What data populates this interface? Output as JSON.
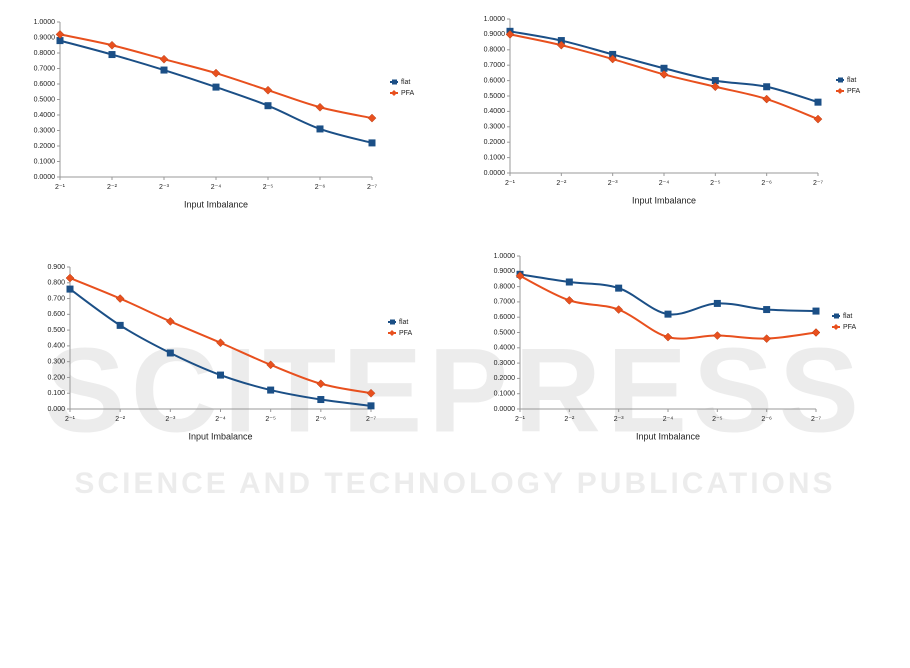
{
  "watermark": {
    "brand": "SCITEPRESS",
    "tagline": "SCIENCE AND TECHNOLOGY PUBLICATIONS"
  },
  "chart_data": [
    {
      "type": "line",
      "xlabel": "Input Imbalance",
      "categories": [
        "2⁻¹",
        "2⁻²",
        "2⁻³",
        "2⁻⁴",
        "2⁻⁵",
        "2⁻⁶",
        "2⁻⁷"
      ],
      "ylim": [
        0,
        1
      ],
      "yticks": [
        {
          "value": 0,
          "label": "0.0000"
        },
        {
          "value": 0.1,
          "label": "0.1000"
        },
        {
          "value": 0.2,
          "label": "0.2000"
        },
        {
          "value": 0.3,
          "label": "0.3000"
        },
        {
          "value": 0.4,
          "label": "0.4000"
        },
        {
          "value": 0.5,
          "label": "0.5000"
        },
        {
          "value": 0.6,
          "label": "0.6000"
        },
        {
          "value": 0.7,
          "label": "0.7000"
        },
        {
          "value": 0.8,
          "label": "0.8000"
        },
        {
          "value": 0.9,
          "label": "0.9000"
        },
        {
          "value": 1,
          "label": "1.0000"
        }
      ],
      "series": [
        {
          "name": "flat",
          "color": "#1b4f86",
          "values": [
            0.88,
            0.79,
            0.69,
            0.58,
            0.46,
            0.31,
            0.22
          ]
        },
        {
          "name": "PFA",
          "color": "#e8501e",
          "values": [
            0.92,
            0.85,
            0.76,
            0.67,
            0.56,
            0.45,
            0.38
          ]
        }
      ]
    },
    {
      "type": "line",
      "xlabel": "Input Imbalance",
      "categories": [
        "2⁻¹",
        "2⁻²",
        "2⁻³",
        "2⁻⁴",
        "2⁻⁵",
        "2⁻⁶",
        "2⁻⁷"
      ],
      "ylim": [
        0,
        1
      ],
      "yticks": [
        {
          "value": 0,
          "label": "0.0000"
        },
        {
          "value": 0.1,
          "label": "0.1000"
        },
        {
          "value": 0.2,
          "label": "0.2000"
        },
        {
          "value": 0.3,
          "label": "0.3000"
        },
        {
          "value": 0.4,
          "label": "0.4000"
        },
        {
          "value": 0.5,
          "label": "0.5000"
        },
        {
          "value": 0.6,
          "label": "0.6000"
        },
        {
          "value": 0.7,
          "label": "0.7000"
        },
        {
          "value": 0.8,
          "label": "0.8000"
        },
        {
          "value": 0.9,
          "label": "0.9000"
        },
        {
          "value": 1,
          "label": "1.0000"
        }
      ],
      "series": [
        {
          "name": "flat",
          "color": "#1b4f86",
          "values": [
            0.92,
            0.86,
            0.77,
            0.68,
            0.6,
            0.56,
            0.46
          ]
        },
        {
          "name": "PFA",
          "color": "#e8501e",
          "values": [
            0.9,
            0.83,
            0.74,
            0.64,
            0.56,
            0.48,
            0.35
          ]
        }
      ]
    },
    {
      "type": "line",
      "xlabel": "Input Imbalance",
      "categories": [
        "2⁻¹",
        "2⁻²",
        "2⁻³",
        "2⁻⁴",
        "2⁻⁵",
        "2⁻⁶",
        "2⁻⁷"
      ],
      "ylim": [
        0,
        0.9
      ],
      "yticks": [
        {
          "value": 0,
          "label": "0.000"
        },
        {
          "value": 0.1,
          "label": "0.100"
        },
        {
          "value": 0.2,
          "label": "0.200"
        },
        {
          "value": 0.3,
          "label": "0.300"
        },
        {
          "value": 0.4,
          "label": "0.400"
        },
        {
          "value": 0.5,
          "label": "0.500"
        },
        {
          "value": 0.6,
          "label": "0.600"
        },
        {
          "value": 0.7,
          "label": "0.700"
        },
        {
          "value": 0.8,
          "label": "0.800"
        },
        {
          "value": 0.9,
          "label": "0.900"
        }
      ],
      "series": [
        {
          "name": "flat",
          "color": "#1b4f86",
          "values": [
            0.76,
            0.53,
            0.355,
            0.215,
            0.12,
            0.06,
            0.02
          ]
        },
        {
          "name": "PFA",
          "color": "#e8501e",
          "values": [
            0.83,
            0.7,
            0.555,
            0.42,
            0.28,
            0.16,
            0.1
          ]
        }
      ]
    },
    {
      "type": "line",
      "xlabel": "Input Imbalance",
      "categories": [
        "2⁻¹",
        "2⁻²",
        "2⁻³",
        "2⁻⁴",
        "2⁻⁵",
        "2⁻⁶",
        "2⁻⁷"
      ],
      "ylim": [
        0,
        1
      ],
      "yticks": [
        {
          "value": 0,
          "label": "0.0000"
        },
        {
          "value": 0.1,
          "label": "0.1000"
        },
        {
          "value": 0.2,
          "label": "0.2000"
        },
        {
          "value": 0.3,
          "label": "0.3000"
        },
        {
          "value": 0.4,
          "label": "0.4000"
        },
        {
          "value": 0.5,
          "label": "0.5000"
        },
        {
          "value": 0.6,
          "label": "0.6000"
        },
        {
          "value": 0.7,
          "label": "0.7000"
        },
        {
          "value": 0.8,
          "label": "0.8000"
        },
        {
          "value": 0.9,
          "label": "0.9000"
        },
        {
          "value": 1,
          "label": "1.0000"
        }
      ],
      "series": [
        {
          "name": "flat",
          "color": "#1b4f86",
          "values": [
            0.88,
            0.83,
            0.79,
            0.62,
            0.69,
            0.65,
            0.64
          ]
        },
        {
          "name": "PFA",
          "color": "#e8501e",
          "values": [
            0.87,
            0.71,
            0.65,
            0.47,
            0.48,
            0.46,
            0.5
          ]
        }
      ]
    }
  ]
}
